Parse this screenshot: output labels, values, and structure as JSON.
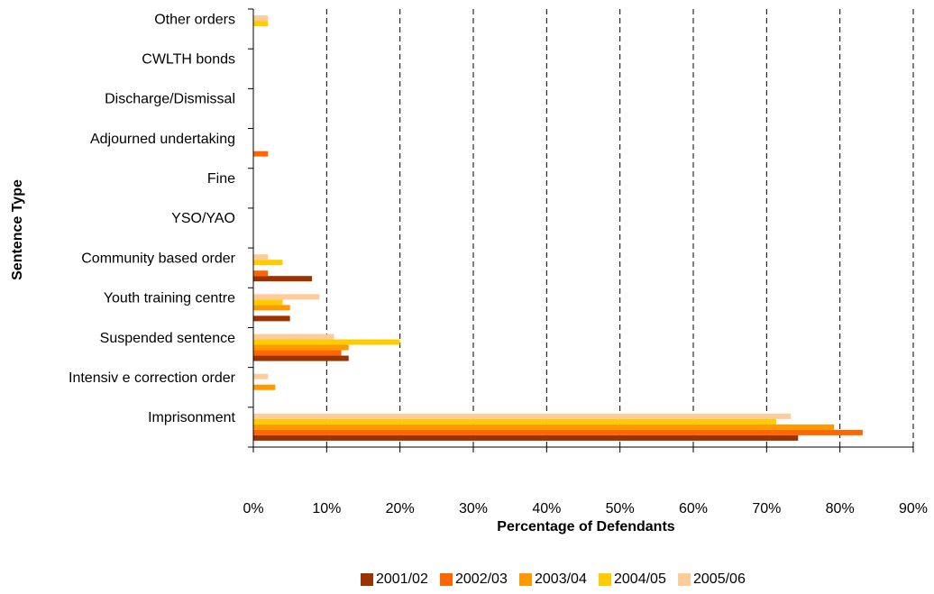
{
  "chart_data": {
    "type": "bar",
    "orientation": "horizontal",
    "xlabel": "Percentage of Defendants",
    "ylabel": "Sentence Type",
    "categories": [
      "Other orders",
      "CWLTH bonds",
      "Discharge/Dismissal",
      "Adjourned undertaking",
      "Fine",
      "YSO/YAO",
      "Community  based order",
      "Youth training centre",
      "Suspended sentence",
      "Intensiv e correction order",
      "Imprisonment"
    ],
    "series": [
      {
        "name": "2001/02",
        "color": "#993300",
        "values": [
          0,
          0,
          0,
          0,
          0,
          0,
          8,
          5,
          13,
          0,
          74.3
        ]
      },
      {
        "name": "2002/03",
        "color": "#ff6600",
        "values": [
          0,
          0,
          0,
          2,
          0,
          0,
          2,
          0,
          12,
          0,
          83.1
        ]
      },
      {
        "name": "2003/04",
        "color": "#ff9900",
        "values": [
          0,
          0,
          0,
          0,
          0,
          0,
          0,
          5,
          13,
          3,
          79.2
        ]
      },
      {
        "name": "2004/05",
        "color": "#ffcc00",
        "values": [
          2,
          0,
          0,
          0,
          0,
          0,
          4,
          4,
          20,
          0,
          71.3
        ]
      },
      {
        "name": "2005/06",
        "color": "#ffcc99",
        "values": [
          2,
          0,
          0,
          0,
          0,
          0,
          2,
          9,
          11,
          2,
          73.3
        ]
      }
    ],
    "xlim": [
      0,
      90
    ],
    "xticks": [
      {
        "value": 0,
        "label": "0%"
      },
      {
        "value": 10,
        "label": "10%"
      },
      {
        "value": 20,
        "label": "20%"
      },
      {
        "value": 30,
        "label": "30%"
      },
      {
        "value": 40,
        "label": "40%"
      },
      {
        "value": 50,
        "label": "50%"
      },
      {
        "value": 60,
        "label": "60%"
      },
      {
        "value": 70,
        "label": "70%"
      },
      {
        "value": 80,
        "label": "80%"
      },
      {
        "value": 90,
        "label": "90%"
      }
    ],
    "grid": true,
    "legend": "bottom"
  }
}
